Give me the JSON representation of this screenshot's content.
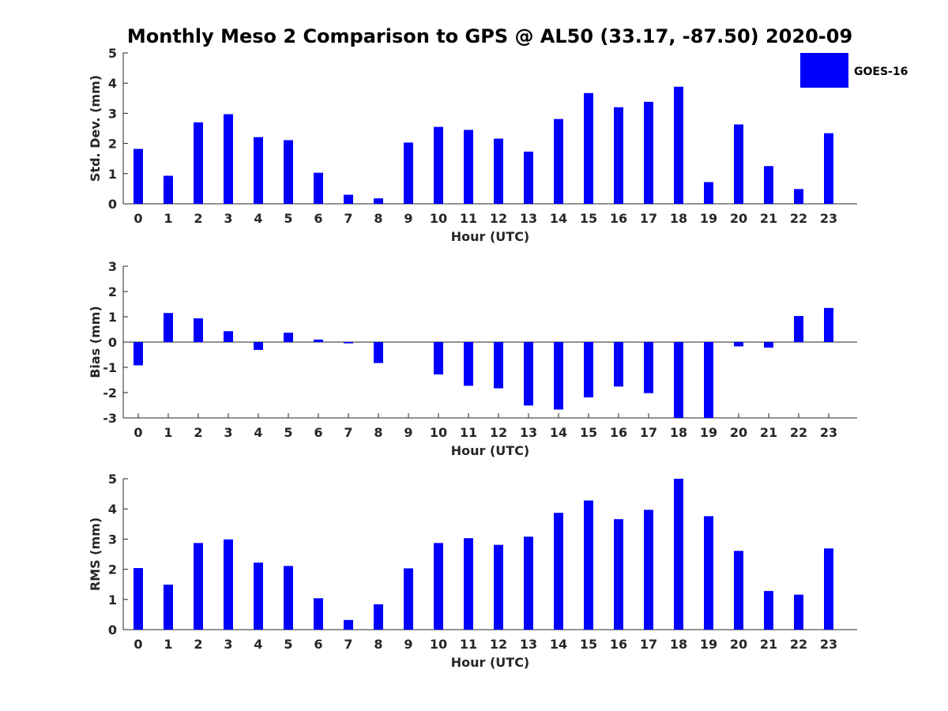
{
  "title": "Monthly Meso 2 Comparison to GPS @ AL50 (33.17, -87.50) 2020-09",
  "legend": {
    "label": "GOES-16",
    "color": "#0000ff",
    "placement": "top-right"
  },
  "chart_data": [
    {
      "type": "bar",
      "ylabel": "Std. Dev. (mm)",
      "xlabel": "Hour (UTC)",
      "ylim": [
        0,
        5
      ],
      "yticks": [
        0,
        1,
        2,
        3,
        4,
        5
      ],
      "categories": [
        "0",
        "1",
        "2",
        "3",
        "4",
        "5",
        "6",
        "7",
        "8",
        "9",
        "10",
        "11",
        "12",
        "13",
        "14",
        "15",
        "16",
        "17",
        "18",
        "19",
        "20",
        "21",
        "22",
        "23"
      ],
      "series": [
        {
          "name": "GOES-16",
          "values": [
            1.82,
            0.93,
            2.7,
            2.97,
            2.21,
            2.11,
            1.03,
            0.3,
            0.18,
            2.03,
            2.55,
            2.45,
            2.16,
            1.73,
            2.81,
            3.67,
            3.2,
            3.38,
            3.88,
            0.72,
            2.63,
            1.25,
            0.49,
            2.34
          ]
        }
      ],
      "grid": false
    },
    {
      "type": "bar",
      "ylabel": "Bias (mm)",
      "xlabel": "Hour (UTC)",
      "ylim": [
        -3,
        3
      ],
      "yticks": [
        -3,
        -2,
        -1,
        0,
        1,
        2,
        3
      ],
      "categories": [
        "0",
        "1",
        "2",
        "3",
        "4",
        "5",
        "6",
        "7",
        "8",
        "9",
        "10",
        "11",
        "12",
        "13",
        "14",
        "15",
        "16",
        "17",
        "18",
        "19",
        "20",
        "21",
        "22",
        "23"
      ],
      "series": [
        {
          "name": "GOES-16",
          "values": [
            -0.92,
            1.15,
            0.94,
            0.43,
            -0.31,
            0.37,
            0.1,
            -0.05,
            -0.83,
            0.0,
            -1.28,
            -1.73,
            -1.83,
            -2.51,
            -2.67,
            -2.19,
            -1.76,
            -2.02,
            -3.0,
            -3.0,
            -0.17,
            -0.22,
            1.03,
            1.35
          ]
        }
      ],
      "grid": false
    },
    {
      "type": "bar",
      "ylabel": "RMS (mm)",
      "xlabel": "Hour (UTC)",
      "ylim": [
        0,
        5
      ],
      "yticks": [
        0,
        1,
        2,
        3,
        4,
        5
      ],
      "categories": [
        "0",
        "1",
        "2",
        "3",
        "4",
        "5",
        "6",
        "7",
        "8",
        "9",
        "10",
        "11",
        "12",
        "13",
        "14",
        "15",
        "16",
        "17",
        "18",
        "19",
        "20",
        "21",
        "22",
        "23"
      ],
      "series": [
        {
          "name": "GOES-16",
          "values": [
            2.04,
            1.49,
            2.87,
            2.99,
            2.22,
            2.11,
            1.04,
            0.32,
            0.84,
            2.03,
            2.87,
            3.03,
            2.81,
            3.08,
            3.87,
            4.28,
            3.66,
            3.97,
            5.0,
            3.76,
            2.61,
            1.28,
            1.16,
            2.69
          ]
        }
      ],
      "grid": false
    }
  ]
}
